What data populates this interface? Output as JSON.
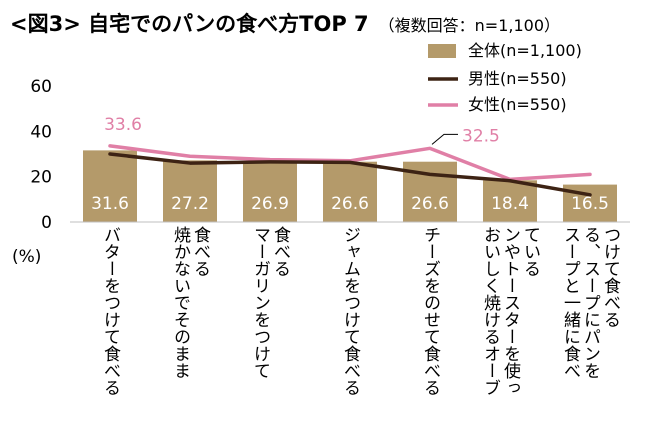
{
  "title": "<図3> 自宅でのパンの食べ方TOP 7",
  "subtitle": "（複数回答：n=1,100）",
  "chart_data": {
    "type": "bar",
    "ylabel": "(%)",
    "ylim": [
      0,
      60
    ],
    "yticks": [
      "60",
      "40",
      "20",
      "0"
    ],
    "ytick_values": [
      60,
      40,
      20,
      0
    ],
    "grid": false,
    "legend_position": "top-right",
    "categories": [
      [
        "バターをつけて食べる"
      ],
      [
        "焼かないでそのまま",
        "食べる"
      ],
      [
        "マーガリンをつけて",
        "食べる"
      ],
      [
        "ジャムをつけて食べる"
      ],
      [
        "チーズをのせて食べる"
      ],
      [
        "おいしく焼けるオーブ",
        "ンやトースターを使っ",
        "ている"
      ],
      [
        "スープと一緒に食べ",
        "る、スープにパンを",
        "つけて食べる"
      ]
    ],
    "series": [
      {
        "name": "全体(n=1,100)",
        "type": "bar",
        "color": "#b49a6a",
        "values": [
          31.6,
          27.2,
          26.9,
          26.6,
          26.6,
          18.4,
          16.5
        ],
        "labels": [
          "31.6",
          "27.2",
          "26.9",
          "26.6",
          "26.6",
          "18.4",
          "16.5"
        ]
      },
      {
        "name": "男性(n=550)",
        "type": "line",
        "color": "#3d2314",
        "values": [
          30.0,
          26.0,
          26.5,
          26.3,
          21.0,
          18.2,
          12.0
        ]
      },
      {
        "name": "女性(n=550)",
        "type": "line",
        "color": "#e07fa6",
        "values": [
          33.6,
          29.0,
          27.5,
          27.0,
          32.5,
          18.8,
          21.0
        ]
      }
    ],
    "annotations": [
      {
        "series": 2,
        "index": 0,
        "text": "33.6"
      },
      {
        "series": 2,
        "index": 4,
        "text": "32.5"
      }
    ]
  }
}
